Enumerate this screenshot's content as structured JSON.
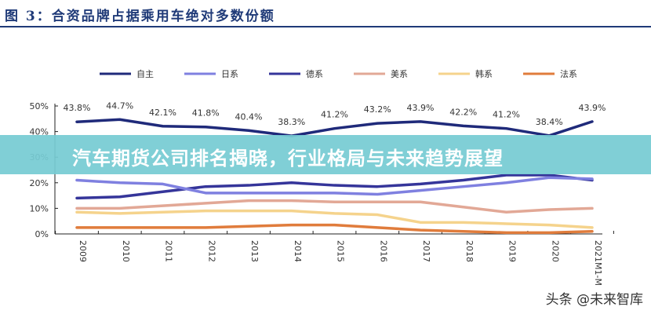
{
  "title": "图 3：合资品牌占据乘用车绝对多数份额",
  "banner": "汽车期货公司排名揭晓，行业格局与未来趋势展望",
  "watermark": "头条 @未来智库",
  "chart_data": {
    "type": "line",
    "title": "图 3：合资品牌占据乘用车绝对多数份额",
    "categories": [
      "2009",
      "2010",
      "2011",
      "2012",
      "2013",
      "2014",
      "2015",
      "2016",
      "2017",
      "2018",
      "2019",
      "2020",
      "2021M1-M"
    ],
    "ylim": [
      0,
      50
    ],
    "yticks": [
      "0%",
      "10%",
      "20%",
      "30%",
      "40%",
      "50%"
    ],
    "grid": false,
    "legend": "top",
    "series": [
      {
        "name": "自主",
        "color": "#1f2a7a",
        "values": [
          43.8,
          44.7,
          42.1,
          41.8,
          40.4,
          38.3,
          41.2,
          43.2,
          43.9,
          42.2,
          41.2,
          38.4,
          43.9
        ],
        "labels": [
          "43.8%",
          "44.7%",
          "42.1%",
          "41.8%",
          "40.4%",
          "38.3%",
          "41.2%",
          "43.2%",
          "43.9%",
          "42.2%",
          "41.2%",
          "38.4%",
          "43.9%"
        ]
      },
      {
        "name": "日系",
        "color": "#7f80e0",
        "values": [
          21,
          20,
          19.5,
          16,
          16,
          16,
          16,
          15.5,
          17,
          18.5,
          20,
          22,
          21.5
        ]
      },
      {
        "name": "德系",
        "color": "#35359a",
        "values": [
          14,
          14.5,
          16.5,
          18.5,
          19,
          20,
          19,
          18.5,
          19.5,
          21,
          23,
          23,
          21
        ]
      },
      {
        "name": "美系",
        "color": "#e2a896",
        "values": [
          10,
          10,
          11,
          12,
          13,
          13,
          12.5,
          12.5,
          12.5,
          10.5,
          8.5,
          9.5,
          10
        ]
      },
      {
        "name": "韩系",
        "color": "#f5d38c",
        "values": [
          8.5,
          8,
          8.5,
          9,
          9,
          9,
          8,
          7.5,
          4.5,
          4.5,
          4,
          3.5,
          2.5
        ]
      },
      {
        "name": "法系",
        "color": "#e07c3c",
        "values": [
          2.5,
          2.5,
          2.5,
          2.5,
          3,
          3.5,
          3.5,
          2.5,
          1.5,
          1,
          0.5,
          0.5,
          1
        ]
      }
    ]
  }
}
